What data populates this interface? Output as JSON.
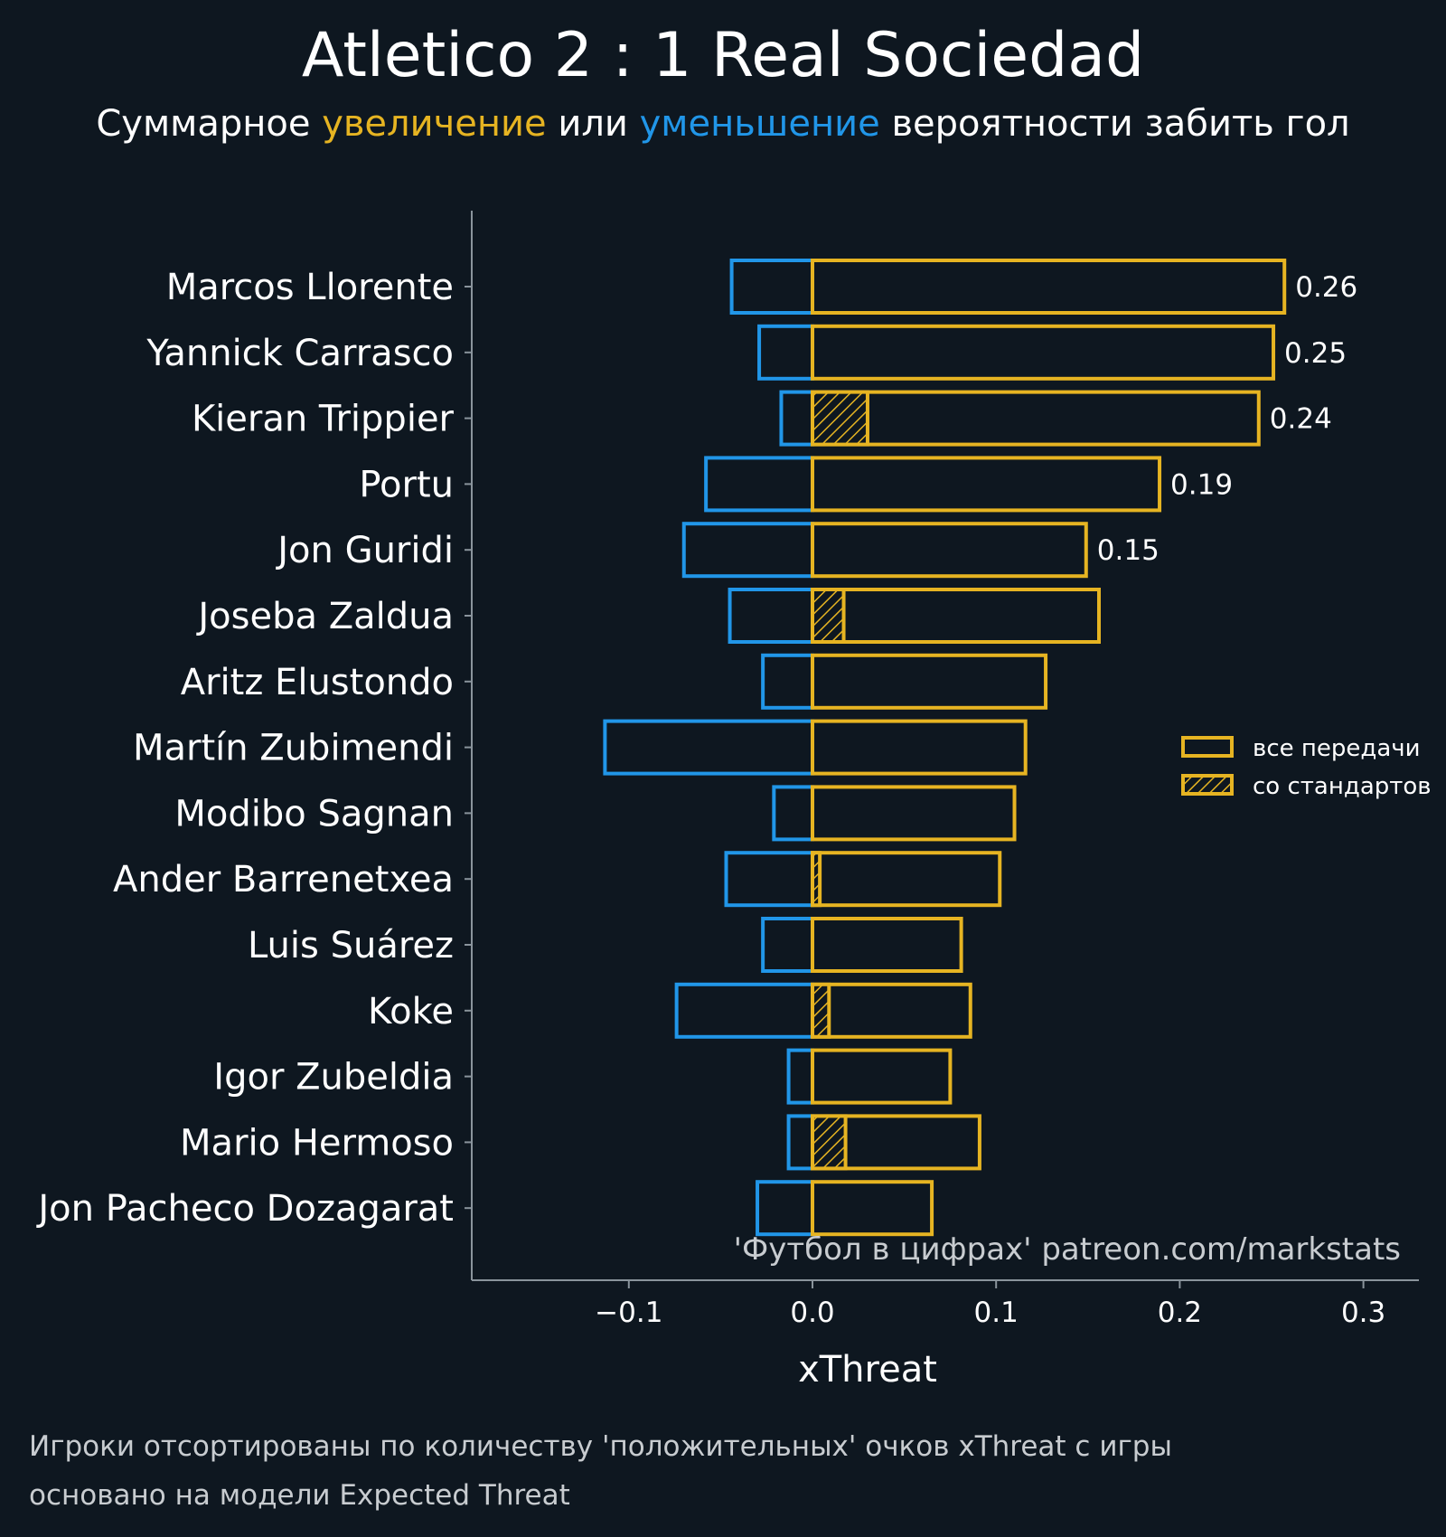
{
  "chart_data": {
    "type": "bar",
    "title": "Atletico 2 : 1 Real Sociedad",
    "subtitle": {
      "part1": "Суммарное ",
      "highlight_increase": "увеличение",
      "part2": " или ",
      "highlight_decrease": "уменьшение",
      "part3": " вероятности забить гол"
    },
    "xlabel": "xThreat",
    "xlim": [
      -0.19,
      0.33
    ],
    "xticks": [
      {
        "value": -0.1,
        "label": "−0.1"
      },
      {
        "value": 0.0,
        "label": "0.0"
      },
      {
        "value": 0.1,
        "label": "0.1"
      },
      {
        "value": 0.2,
        "label": "0.2"
      },
      {
        "value": 0.3,
        "label": "0.3"
      }
    ],
    "categories": [
      "Marcos Llorente",
      "Yannick Carrasco",
      "Kieran Trippier",
      "Portu",
      "Jon Guridi",
      "Joseba Zaldua",
      "Aritz Elustondo",
      "Martín Zubimendi",
      "Modibo Sagnan",
      "Ander Barrenetxea",
      "Luis Suárez",
      "Koke",
      "Igor Zubeldia",
      "Mario Hermoso",
      "Jon Pacheco Dozagarat"
    ],
    "series": [
      {
        "name": "все передачи",
        "values": [
          0.257,
          0.251,
          0.243,
          0.189,
          0.149,
          0.156,
          0.127,
          0.116,
          0.11,
          0.102,
          0.081,
          0.086,
          0.075,
          0.091,
          0.065
        ]
      },
      {
        "name": "со стандартов",
        "values": [
          0,
          0,
          0.03,
          0,
          0,
          0.017,
          0,
          0,
          0,
          0.004,
          0,
          0.009,
          0,
          0.018,
          0
        ]
      },
      {
        "values": [
          -0.044,
          -0.029,
          -0.017,
          -0.058,
          -0.07,
          -0.045,
          -0.027,
          -0.113,
          -0.021,
          -0.047,
          -0.027,
          -0.074,
          -0.013,
          -0.013,
          -0.03
        ]
      }
    ],
    "data_labels": [
      "0.26",
      "0.25",
      "0.24",
      "0.19",
      "0.15",
      "",
      "",
      "",
      "",
      "",
      "",
      "",
      "",
      "",
      ""
    ],
    "legend_position": "right",
    "grid": false,
    "colors": {
      "positive": "#e6b422",
      "negative": "#2196e8",
      "background": "#0e1720",
      "axis": "#8a949c"
    },
    "watermark": "'Футбол в цифрах' patreon.com/markstats"
  },
  "notes": [
    "Игроки отсортированы по количеству 'положительных' очков xThreat с игры",
    "основано на модели Expected Threat"
  ]
}
